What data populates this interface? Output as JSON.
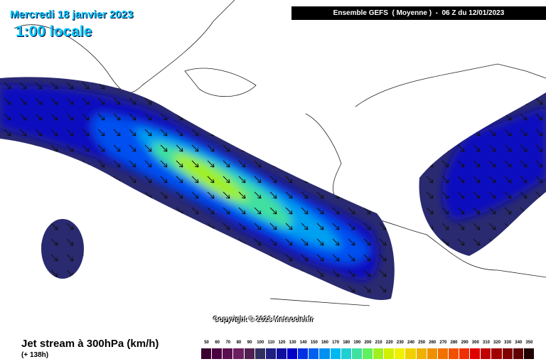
{
  "header": {
    "date": "Mercredi 18 janvier 2023",
    "time": "1:00 locale",
    "run": "Ensemble GEFS  ( Moyenne )  -  06 Z du 12/01/2023"
  },
  "copyright": "Copyright © 2023 Meteociel.fr",
  "footer": {
    "title": "Jet stream à 300hPa (km/h)",
    "lead": "(+ 138h)"
  },
  "legend": {
    "values": [
      50,
      60,
      70,
      80,
      90,
      100,
      110,
      120,
      130,
      140,
      150,
      160,
      170,
      180,
      190,
      200,
      210,
      220,
      230,
      240,
      250,
      260,
      270,
      280,
      290,
      300,
      310,
      320,
      330,
      340,
      350
    ],
    "colors": [
      "#3a0030",
      "#4a0040",
      "#5a1050",
      "#6a2060",
      "#502050",
      "#303060",
      "#202080",
      "#1010a0",
      "#0000c8",
      "#0030e0",
      "#0060f0",
      "#0090f0",
      "#00b8f0",
      "#20d0d0",
      "#40e0a0",
      "#60f060",
      "#a0f020",
      "#d0f000",
      "#f0f000",
      "#f0d000",
      "#f0b000",
      "#f09000",
      "#f07000",
      "#f05000",
      "#f03000",
      "#e00000",
      "#c00000",
      "#a00000",
      "#800000",
      "#600000",
      "#200000"
    ]
  }
}
